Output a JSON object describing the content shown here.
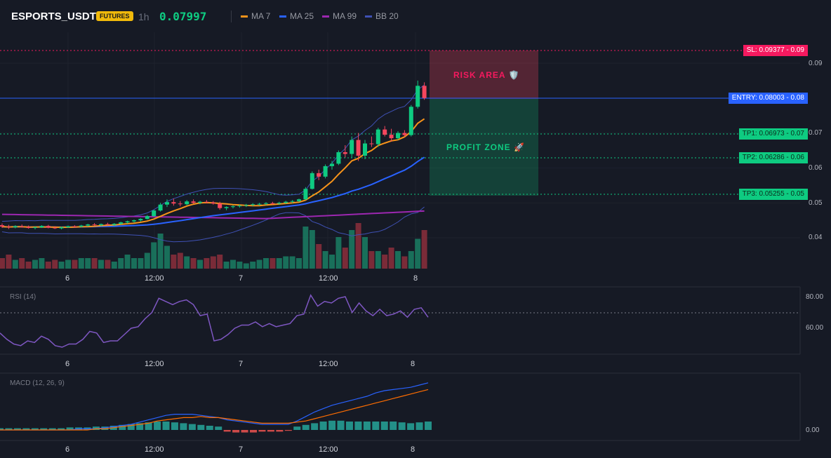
{
  "header": {
    "symbol": "ESPORTS_USDT",
    "badge": "FUTURES",
    "timeframe": "1h",
    "price": "0.07997",
    "legend": [
      {
        "label": "MA 7",
        "color": "#f7931a"
      },
      {
        "label": "MA 25",
        "color": "#2962ff"
      },
      {
        "label": "MA 99",
        "color": "#9c27b0"
      },
      {
        "label": "BB 20",
        "color": "#3f51b5"
      }
    ]
  },
  "levels": {
    "sl": "SL: 0.09377 - 0.09",
    "entry": "ENTRY: 0.08003 - 0.08",
    "tp1": "TP1: 0.06973 - 0.07",
    "tp2": "TP2: 0.06286 - 0.06",
    "tp3": "TP3: 0.05255 - 0.05"
  },
  "zones": {
    "risk": "RISK AREA 🛡️",
    "profit": "PROFIT ZONE 🚀"
  },
  "price_axis": [
    "0.09",
    "0.07",
    "0.06",
    "0.05",
    "0.04"
  ],
  "time_labels": [
    "6",
    "12:00",
    "7",
    "12:00",
    "8"
  ],
  "rsi": {
    "label": "RSI (14)",
    "axis": [
      "80.00",
      "60.00"
    ]
  },
  "macd": {
    "label": "MACD (12, 26, 9)",
    "axis": [
      "0.00"
    ]
  },
  "colors": {
    "up": "#0ecb81",
    "down": "#f6465d",
    "background": "#161a25"
  },
  "candles": [
    [
      0.0436,
      0.0441,
      0.0428,
      0.0432
    ],
    [
      0.0432,
      0.0437,
      0.0425,
      0.043
    ],
    [
      0.043,
      0.0436,
      0.0427,
      0.0433
    ],
    [
      0.0433,
      0.0438,
      0.0429,
      0.0431
    ],
    [
      0.0431,
      0.0435,
      0.0426,
      0.0428
    ],
    [
      0.0428,
      0.0433,
      0.0424,
      0.043
    ],
    [
      0.043,
      0.0436,
      0.0428,
      0.0434
    ],
    [
      0.0434,
      0.0437,
      0.0427,
      0.0429
    ],
    [
      0.0429,
      0.0433,
      0.0425,
      0.0427
    ],
    [
      0.0427,
      0.0432,
      0.0424,
      0.043
    ],
    [
      0.043,
      0.0435,
      0.0428,
      0.0433
    ],
    [
      0.0433,
      0.0436,
      0.0429,
      0.0432
    ],
    [
      0.0432,
      0.0437,
      0.043,
      0.0435
    ],
    [
      0.0435,
      0.044,
      0.0432,
      0.0438
    ],
    [
      0.0438,
      0.0442,
      0.0434,
      0.0436
    ],
    [
      0.0436,
      0.0441,
      0.0433,
      0.0439
    ],
    [
      0.0439,
      0.0443,
      0.0435,
      0.0437
    ],
    [
      0.0437,
      0.0442,
      0.0433,
      0.044
    ],
    [
      0.044,
      0.0446,
      0.0437,
      0.0444
    ],
    [
      0.0444,
      0.0449,
      0.044,
      0.0447
    ],
    [
      0.0447,
      0.0452,
      0.0443,
      0.045
    ],
    [
      0.045,
      0.0456,
      0.0446,
      0.0454
    ],
    [
      0.0454,
      0.0465,
      0.0452,
      0.0462
    ],
    [
      0.0462,
      0.048,
      0.046,
      0.0478
    ],
    [
      0.0478,
      0.05,
      0.0475,
      0.0495
    ],
    [
      0.0495,
      0.051,
      0.0488,
      0.0502
    ],
    [
      0.0502,
      0.0512,
      0.0492,
      0.0498
    ],
    [
      0.0498,
      0.0505,
      0.049,
      0.0496
    ],
    [
      0.0496,
      0.0508,
      0.0493,
      0.0504
    ],
    [
      0.0504,
      0.051,
      0.0498,
      0.05
    ],
    [
      0.05,
      0.0506,
      0.0496,
      0.0503
    ],
    [
      0.0503,
      0.0508,
      0.0499,
      0.0501
    ],
    [
      0.0501,
      0.0505,
      0.0495,
      0.0498
    ],
    [
      0.0498,
      0.0503,
      0.048,
      0.0485
    ],
    [
      0.0485,
      0.049,
      0.0479,
      0.0488
    ],
    [
      0.0488,
      0.0493,
      0.0484,
      0.049
    ],
    [
      0.049,
      0.0495,
      0.0486,
      0.0492
    ],
    [
      0.0492,
      0.0497,
      0.0488,
      0.0494
    ],
    [
      0.0494,
      0.0499,
      0.049,
      0.0496
    ],
    [
      0.0496,
      0.05,
      0.0492,
      0.0497
    ],
    [
      0.0497,
      0.0502,
      0.0493,
      0.0499
    ],
    [
      0.0499,
      0.0503,
      0.0495,
      0.0498
    ],
    [
      0.0498,
      0.0503,
      0.0494,
      0.05
    ],
    [
      0.05,
      0.0506,
      0.0497,
      0.0503
    ],
    [
      0.0503,
      0.0508,
      0.0499,
      0.0505
    ],
    [
      0.0505,
      0.0512,
      0.0502,
      0.051
    ],
    [
      0.051,
      0.0545,
      0.0508,
      0.054
    ],
    [
      0.054,
      0.059,
      0.0538,
      0.0585
    ],
    [
      0.0585,
      0.0595,
      0.0565,
      0.0575
    ],
    [
      0.0575,
      0.061,
      0.057,
      0.0605
    ],
    [
      0.0605,
      0.062,
      0.0595,
      0.0612
    ],
    [
      0.0612,
      0.065,
      0.0608,
      0.0645
    ],
    [
      0.0645,
      0.0665,
      0.063,
      0.064
    ],
    [
      0.064,
      0.069,
      0.063,
      0.068
    ],
    [
      0.068,
      0.07,
      0.062,
      0.0635
    ],
    [
      0.0635,
      0.068,
      0.0625,
      0.067
    ],
    [
      0.067,
      0.069,
      0.066,
      0.0668
    ],
    [
      0.0668,
      0.0715,
      0.066,
      0.071
    ],
    [
      0.071,
      0.072,
      0.069,
      0.0695
    ],
    [
      0.0695,
      0.0712,
      0.0675,
      0.0685
    ],
    [
      0.0685,
      0.0705,
      0.068,
      0.07
    ],
    [
      0.07,
      0.0708,
      0.0688,
      0.0694
    ],
    [
      0.0694,
      0.078,
      0.069,
      0.0775
    ],
    [
      0.0775,
      0.085,
      0.077,
      0.0835
    ],
    [
      0.0835,
      0.0845,
      0.0795,
      0.08
    ]
  ],
  "volumes": [
    3,
    4,
    2.5,
    3,
    2,
    2.5,
    3,
    2,
    2.5,
    2,
    2.5,
    2.5,
    3,
    3,
    3,
    2.5,
    2.5,
    2,
    3,
    4,
    3,
    3,
    4.5,
    7.5,
    10,
    6.5,
    4,
    4.5,
    3.5,
    3,
    2.5,
    3,
    3.5,
    4,
    2,
    2.5,
    2,
    1.5,
    2,
    2.5,
    3,
    3,
    3,
    3.5,
    3.5,
    3,
    12,
    11,
    7,
    5,
    4,
    9,
    6,
    11,
    13,
    9,
    5,
    5,
    4,
    6,
    5,
    3.5,
    5,
    8.5,
    11
  ],
  "rsi_values": [
    57,
    53,
    50,
    49,
    52,
    51,
    55,
    53,
    49,
    48,
    50,
    50,
    53,
    58,
    57,
    51,
    52,
    52,
    56,
    60,
    61,
    66,
    70,
    79,
    77,
    75,
    77,
    78,
    75,
    68,
    69,
    52,
    53,
    56,
    60,
    62,
    62,
    64,
    61,
    63,
    61,
    62,
    63,
    68,
    69,
    81,
    74,
    77,
    76,
    79,
    80,
    70,
    76,
    71,
    68,
    72,
    68,
    69,
    71,
    67,
    72,
    73,
    67
  ],
  "macd_line": [
    0.0,
    0.0,
    0.0,
    0.0,
    0.0,
    0.0,
    0.0,
    0.0,
    0.0,
    0.0001,
    0.0001,
    0.0001,
    0.0002,
    0.0003,
    0.0004,
    0.0005,
    0.0007,
    0.0009,
    0.0011,
    0.0013,
    0.0014,
    0.0014,
    0.0014,
    0.0013,
    0.0012,
    0.0011,
    0.0009,
    0.0008,
    0.0007,
    0.0006,
    0.0005,
    0.0005,
    0.0005,
    0.0005,
    0.0008,
    0.0012,
    0.0016,
    0.0019,
    0.0022,
    0.0024,
    0.0026,
    0.0028,
    0.003,
    0.0033,
    0.0035,
    0.0036,
    0.0037,
    0.0038,
    0.004,
    0.0042
  ],
  "macd_signal": [
    0.0,
    0.0,
    0.0,
    0.0,
    0.0,
    0.0,
    0.0,
    0.0,
    0.0,
    0.0,
    0.0,
    0.0001,
    0.0001,
    0.0002,
    0.0003,
    0.0004,
    0.0005,
    0.0006,
    0.0008,
    0.0009,
    0.001,
    0.0011,
    0.0011,
    0.0012,
    0.0011,
    0.0011,
    0.001,
    0.0009,
    0.0008,
    0.0007,
    0.0006,
    0.0006,
    0.0006,
    0.0006,
    0.0007,
    0.0008,
    0.001,
    0.0012,
    0.0014,
    0.0016,
    0.0018,
    0.002,
    0.0022,
    0.0024,
    0.0026,
    0.0028,
    0.003,
    0.0032,
    0.0034,
    0.0036
  ],
  "macd_hist": [
    0.2,
    0.2,
    0.2,
    0.2,
    0.2,
    0.2,
    0.2,
    0.2,
    0.3,
    0.3,
    0.3,
    0.4,
    0.4,
    0.5,
    0.6,
    0.7,
    0.8,
    0.9,
    1.0,
    1.0,
    0.9,
    0.8,
    0.7,
    0.6,
    0.5,
    0.4,
    -0.2,
    -0.3,
    -0.3,
    -0.3,
    -0.2,
    -0.2,
    -0.2,
    -0.1,
    0.4,
    0.6,
    0.8,
    1.0,
    1.1,
    1.1,
    1.0,
    1.0,
    1.0,
    1.0,
    1.0,
    1.0,
    0.9,
    0.8,
    0.9,
    1.0
  ]
}
